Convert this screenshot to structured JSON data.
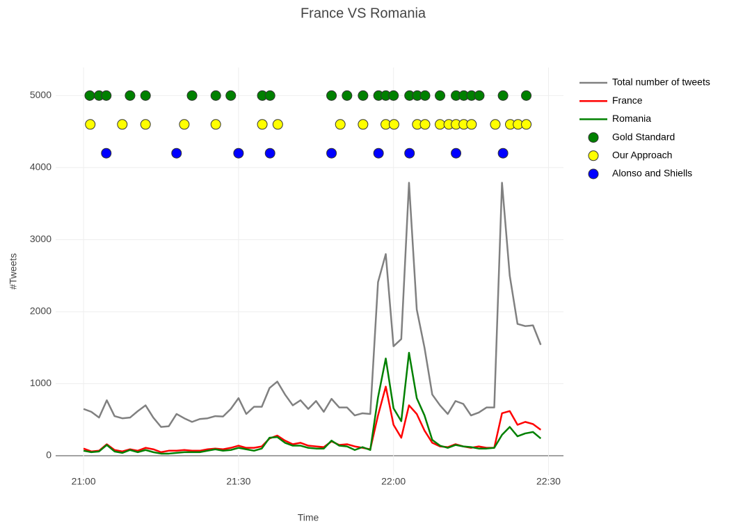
{
  "chart_data": {
    "type": "line",
    "title": "France VS Romania",
    "xlabel": "Time",
    "ylabel": "#Tweets",
    "xlim": [
      1254.6,
      1352.9
    ],
    "ylim": [
      -270,
      5390
    ],
    "xticks": [
      {
        "value": 1260,
        "label": "21:00"
      },
      {
        "value": 1290,
        "label": "21:30"
      },
      {
        "value": 1320,
        "label": "22:00"
      },
      {
        "value": 1350,
        "label": "22:30"
      }
    ],
    "yticks": [
      0,
      1000,
      2000,
      3000,
      4000,
      5000
    ],
    "grid": true,
    "legend": "right",
    "series": [
      {
        "name": "Total number of tweets",
        "color": "#808080",
        "mode": "lines",
        "x": [
          1260,
          1261.5,
          1263,
          1264.5,
          1266,
          1267.5,
          1269,
          1270.5,
          1272,
          1273.5,
          1275,
          1276.5,
          1278,
          1279.5,
          1281,
          1282.5,
          1284,
          1285.5,
          1287,
          1288.5,
          1290,
          1291.5,
          1293,
          1294.5,
          1296,
          1297.5,
          1299,
          1300.5,
          1302,
          1303.5,
          1305,
          1306.5,
          1308,
          1309.5,
          1311,
          1312.5,
          1314,
          1315.5,
          1317,
          1318.5,
          1320,
          1321.5,
          1323,
          1324.5,
          1326,
          1327.5,
          1329,
          1330.5,
          1332,
          1333.5,
          1335,
          1336.5,
          1338,
          1339.5,
          1341,
          1342.5,
          1344,
          1345.5,
          1347,
          1348.5
        ],
        "values": [
          650,
          610,
          530,
          770,
          550,
          520,
          530,
          620,
          700,
          530,
          400,
          410,
          580,
          520,
          470,
          510,
          520,
          550,
          545,
          650,
          800,
          580,
          680,
          680,
          940,
          1030,
          850,
          700,
          770,
          650,
          760,
          610,
          790,
          670,
          670,
          560,
          590,
          580,
          2410,
          2800,
          1520,
          1620,
          3790,
          2030,
          1500,
          850,
          700,
          580,
          760,
          720,
          560,
          600,
          670,
          670,
          3790,
          2500,
          1830,
          1800,
          1810,
          1540
        ]
      },
      {
        "name": "France",
        "color": "#ff0000",
        "mode": "lines",
        "x": [
          1260,
          1261.5,
          1263,
          1264.5,
          1266,
          1267.5,
          1269,
          1270.5,
          1272,
          1273.5,
          1275,
          1276.5,
          1278,
          1279.5,
          1281,
          1282.5,
          1284,
          1285.5,
          1287,
          1288.5,
          1290,
          1291.5,
          1293,
          1294.5,
          1296,
          1297.5,
          1299,
          1300.5,
          1302,
          1303.5,
          1305,
          1306.5,
          1308,
          1309.5,
          1311,
          1312.5,
          1314,
          1315.5,
          1317,
          1318.5,
          1320,
          1321.5,
          1323,
          1324.5,
          1326,
          1327.5,
          1329,
          1330.5,
          1332,
          1333.5,
          1335,
          1336.5,
          1338,
          1339.5,
          1341,
          1342.5,
          1344,
          1345.5,
          1347,
          1348.5
        ],
        "values": [
          100,
          60,
          70,
          160,
          80,
          60,
          90,
          70,
          110,
          90,
          50,
          70,
          70,
          80,
          70,
          70,
          90,
          100,
          90,
          110,
          140,
          110,
          110,
          130,
          240,
          280,
          210,
          160,
          180,
          140,
          130,
          120,
          200,
          150,
          160,
          130,
          110,
          90,
          560,
          960,
          430,
          250,
          700,
          580,
          350,
          180,
          130,
          120,
          160,
          130,
          110,
          130,
          110,
          110,
          590,
          620,
          430,
          470,
          440,
          360
        ]
      },
      {
        "name": "Romania",
        "color": "#008000",
        "mode": "lines",
        "x": [
          1260,
          1261.5,
          1263,
          1264.5,
          1266,
          1267.5,
          1269,
          1270.5,
          1272,
          1273.5,
          1275,
          1276.5,
          1278,
          1279.5,
          1281,
          1282.5,
          1284,
          1285.5,
          1287,
          1288.5,
          1290,
          1291.5,
          1293,
          1294.5,
          1296,
          1297.5,
          1299,
          1300.5,
          1302,
          1303.5,
          1305,
          1306.5,
          1308,
          1309.5,
          1311,
          1312.5,
          1314,
          1315.5,
          1317,
          1318.5,
          1320,
          1321.5,
          1323,
          1324.5,
          1326,
          1327.5,
          1329,
          1330.5,
          1332,
          1333.5,
          1335,
          1336.5,
          1338,
          1339.5,
          1341,
          1342.5,
          1344,
          1345.5,
          1347,
          1348.5
        ],
        "values": [
          70,
          50,
          60,
          150,
          60,
          40,
          80,
          50,
          80,
          50,
          30,
          30,
          40,
          50,
          50,
          50,
          70,
          90,
          70,
          80,
          110,
          90,
          70,
          100,
          250,
          260,
          180,
          140,
          140,
          110,
          100,
          100,
          210,
          140,
          130,
          80,
          120,
          80,
          810,
          1350,
          660,
          480,
          1430,
          800,
          560,
          220,
          140,
          110,
          150,
          130,
          120,
          100,
          100,
          110,
          290,
          400,
          270,
          310,
          330,
          240
        ]
      },
      {
        "name": "Gold Standard",
        "color": "#008000",
        "mode": "markers",
        "x": [
          1261.2,
          1263,
          1264.4,
          1269,
          1272,
          1281,
          1285.6,
          1288.5,
          1294.6,
          1296.1,
          1308,
          1311,
          1314.1,
          1317.1,
          1318.5,
          1320,
          1323.1,
          1324.6,
          1326.1,
          1329,
          1332.1,
          1333.6,
          1335.1,
          1336.6,
          1341.2,
          1345.7
        ],
        "values": [
          5000,
          5000,
          5000,
          5000,
          5000,
          5000,
          5000,
          5000,
          5000,
          5000,
          5000,
          5000,
          5000,
          5000,
          5000,
          5000,
          5000,
          5000,
          5000,
          5000,
          5000,
          5000,
          5000,
          5000,
          5000,
          5000
        ]
      },
      {
        "name": "Our Approach",
        "color": "#ffff00",
        "mode": "markers",
        "x": [
          1261.3,
          1267.5,
          1272,
          1279.5,
          1285.6,
          1294.6,
          1297.6,
          1309.7,
          1314.1,
          1318.5,
          1320.1,
          1324.6,
          1326.1,
          1329,
          1330.7,
          1332.1,
          1333.6,
          1335.1,
          1339.7,
          1342.6,
          1344.1,
          1345.7
        ],
        "values": [
          4600,
          4600,
          4600,
          4600,
          4600,
          4600,
          4600,
          4600,
          4600,
          4600,
          4600,
          4600,
          4600,
          4600,
          4600,
          4600,
          4600,
          4600,
          4600,
          4600,
          4600,
          4600
        ]
      },
      {
        "name": "Alonso and Shiells",
        "color": "#0000ff",
        "mode": "markers",
        "x": [
          1264.4,
          1278,
          1290,
          1296.1,
          1308,
          1317.1,
          1323.1,
          1332.1,
          1341.2
        ],
        "values": [
          4200,
          4200,
          4200,
          4200,
          4200,
          4200,
          4200,
          4200,
          4200
        ]
      }
    ]
  }
}
